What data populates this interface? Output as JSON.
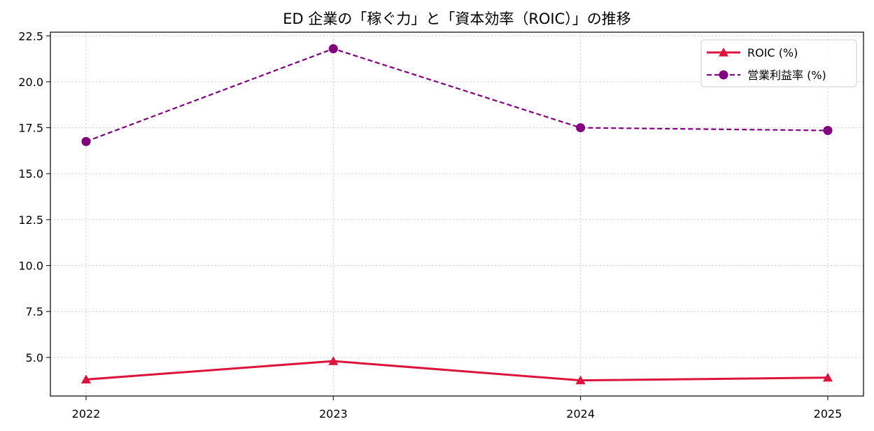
{
  "chart_data": {
    "type": "line",
    "title": "ED 企業の「稼ぐ力」と「資本効率（ROIC）」の推移",
    "xlabel": "",
    "ylabel": "",
    "categories": [
      "2022",
      "2023",
      "2024",
      "2025"
    ],
    "ylim": [
      2.9,
      22.7
    ],
    "yticks": [
      5.0,
      7.5,
      10.0,
      12.5,
      15.0,
      17.5,
      20.0,
      22.5
    ],
    "ytick_labels": [
      "5.0",
      "7.5",
      "10.0",
      "12.5",
      "15.0",
      "17.5",
      "20.0",
      "22.5"
    ],
    "grid": true,
    "legend_position": "top-right",
    "series": [
      {
        "name": "ROIC (%)",
        "values": [
          3.8,
          4.8,
          3.75,
          3.9
        ],
        "color": "#dc143c",
        "marker": "triangle",
        "line_style": "solid"
      },
      {
        "name": "営業利益率 (%)",
        "values": [
          16.75,
          21.8,
          17.5,
          17.35
        ],
        "color": "#800080",
        "marker": "circle",
        "line_style": "dashed"
      }
    ]
  }
}
